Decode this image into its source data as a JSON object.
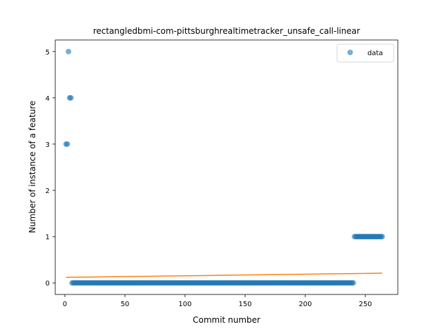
{
  "chart_data": {
    "type": "scatter",
    "title": "rectangledbmi-com-pittsburghrealtimetracker_unsafe_call-linear",
    "xlabel": "Commit number",
    "ylabel": "Number of instance of a feature",
    "xlim": [
      -8,
      277
    ],
    "ylim": [
      -0.25,
      5.25
    ],
    "xticks": [
      0,
      50,
      100,
      150,
      200,
      250
    ],
    "yticks": [
      0,
      1,
      2,
      3,
      4,
      5
    ],
    "grid": false,
    "legend_position": "top-right",
    "series": [
      {
        "name": "data",
        "kind": "scatter",
        "color": "#1f77b4",
        "points": [
          [
            1,
            3
          ],
          [
            2,
            3
          ],
          [
            3,
            5
          ],
          [
            4,
            4
          ],
          [
            5,
            4
          ],
          {
            "range": [
              6,
              240
            ],
            "y": 0
          },
          {
            "range": [
              241,
              264
            ],
            "y": 1
          }
        ]
      },
      {
        "kind": "line",
        "color": "#ff7f0e",
        "x": [
          1,
          264
        ],
        "y": [
          0.12,
          0.21
        ]
      }
    ],
    "legend": [
      {
        "label": "data",
        "marker": "circle",
        "color": "#1f77b4"
      }
    ]
  }
}
